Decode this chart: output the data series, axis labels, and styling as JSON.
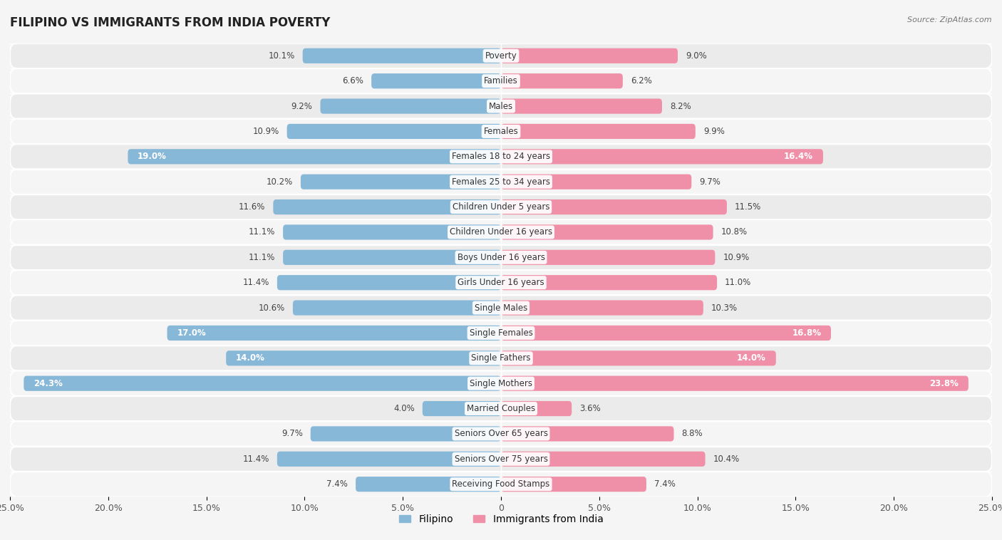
{
  "title": "FILIPINO VS IMMIGRANTS FROM INDIA POVERTY",
  "source": "Source: ZipAtlas.com",
  "categories": [
    "Poverty",
    "Families",
    "Males",
    "Females",
    "Females 18 to 24 years",
    "Females 25 to 34 years",
    "Children Under 5 years",
    "Children Under 16 years",
    "Boys Under 16 years",
    "Girls Under 16 years",
    "Single Males",
    "Single Females",
    "Single Fathers",
    "Single Mothers",
    "Married Couples",
    "Seniors Over 65 years",
    "Seniors Over 75 years",
    "Receiving Food Stamps"
  ],
  "filipino_values": [
    10.1,
    6.6,
    9.2,
    10.9,
    19.0,
    10.2,
    11.6,
    11.1,
    11.1,
    11.4,
    10.6,
    17.0,
    14.0,
    24.3,
    4.0,
    9.7,
    11.4,
    7.4
  ],
  "india_values": [
    9.0,
    6.2,
    8.2,
    9.9,
    16.4,
    9.7,
    11.5,
    10.8,
    10.9,
    11.0,
    10.3,
    16.8,
    14.0,
    23.8,
    3.6,
    8.8,
    10.4,
    7.4
  ],
  "filipino_color": "#88b8d8",
  "india_color": "#f090a8",
  "bar_height": 0.6,
  "xlim": 25.0,
  "background_color": "#f5f5f5",
  "row_odd_color": "#ebebeb",
  "row_even_color": "#f5f5f5",
  "label_fontsize": 8.5,
  "value_fontsize": 8.5,
  "title_fontsize": 12,
  "axis_tick_fontsize": 9,
  "legend_labels": [
    "Filipino",
    "Immigrants from India"
  ],
  "inside_label_threshold_fil": 14.0,
  "inside_label_threshold_ind": 13.0
}
